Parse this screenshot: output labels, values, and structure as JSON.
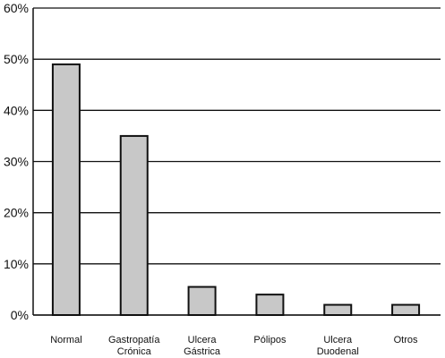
{
  "chart_data": {
    "type": "bar",
    "categories": [
      [
        "Normal"
      ],
      [
        "Gastropatía",
        "Crónica"
      ],
      [
        "Ulcera",
        "Gástrica"
      ],
      [
        "Pólipos"
      ],
      [
        "Ulcera",
        "Duodenal"
      ],
      [
        "Otros"
      ]
    ],
    "values": [
      49,
      35,
      5.5,
      4,
      2,
      2
    ],
    "y_ticks": [
      "0%",
      "10%",
      "20%",
      "30%",
      "40%",
      "50%",
      "60%"
    ],
    "ylim": [
      0,
      60
    ],
    "title": "",
    "xlabel": "",
    "ylabel": "",
    "grid": true,
    "colors": {
      "bar_fill": "#c8c8c8",
      "bar_stroke": "#111111",
      "grid": "#111111",
      "axis": "#111111"
    }
  }
}
